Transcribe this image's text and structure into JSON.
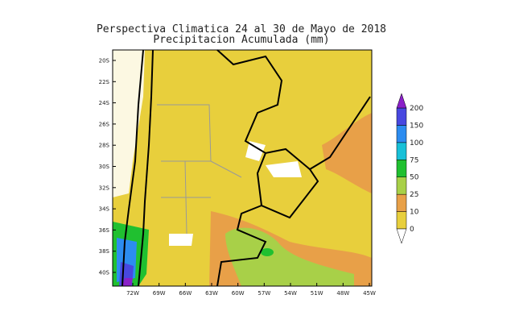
{
  "header": {
    "title": "Perspectiva Climatica 24 al 30 de Mayo de 2018",
    "subtitle": "Precipitacion Acumulada (mm)"
  },
  "map": {
    "lat_labels": [
      "20S",
      "22S",
      "24S",
      "26S",
      "28S",
      "30S",
      "32S",
      "34S",
      "36S",
      "38S",
      "40S"
    ],
    "lon_labels": [
      "72W",
      "69W",
      "66W",
      "63W",
      "60W",
      "57W",
      "54W",
      "51W",
      "48W",
      "45W"
    ]
  },
  "colorbar": {
    "levels": [
      0,
      10,
      25,
      50,
      75,
      100,
      150,
      200
    ],
    "under_color": "#ffffff",
    "colors": [
      "#e8cf3c",
      "#e8a048",
      "#a8d048",
      "#20c030",
      "#18c0d8",
      "#2c8cf0",
      "#4848e0"
    ],
    "over_color": "#8a20c8"
  }
}
